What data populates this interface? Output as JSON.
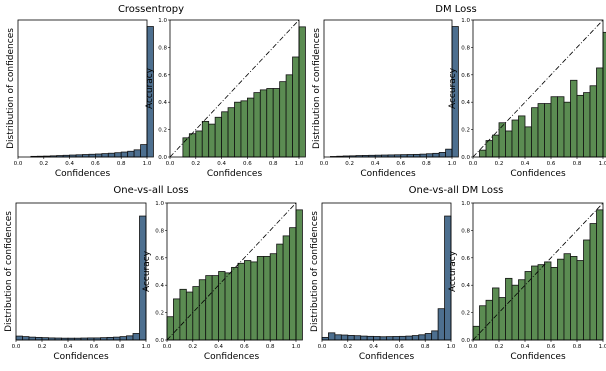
{
  "chart_data": [
    {
      "type": "bar",
      "title": "Crossentropy",
      "panels": [
        {
          "kind": "histogram",
          "xlabel": "Confidences",
          "ylabel": "Distribution of confidences",
          "xlim": [
            0,
            1
          ],
          "xticks": [
            "0.0",
            "0.2",
            "0.4",
            "0.6",
            "0.8",
            "1.0"
          ],
          "yticks": [],
          "bin_width": 0.05,
          "values": [
            0.0,
            0.0,
            0.005,
            0.006,
            0.007,
            0.009,
            0.011,
            0.013,
            0.015,
            0.017,
            0.019,
            0.021,
            0.023,
            0.026,
            0.029,
            0.033,
            0.038,
            0.044,
            0.055,
            0.095,
            1.0
          ],
          "color": "#4d6f8f"
        },
        {
          "kind": "reliability",
          "xlabel": "Confidences",
          "ylabel": "Accuracy",
          "xlim": [
            0,
            1
          ],
          "ylim": [
            0,
            1
          ],
          "xticks": [
            "0.0",
            "0.2",
            "0.4",
            "0.6",
            "0.8",
            "1.0"
          ],
          "yticks": [
            "0.0",
            "0.2",
            "0.4",
            "0.6",
            "0.8",
            "1.0"
          ],
          "bin_width": 0.05,
          "bins_start": 0.1,
          "values": [
            0.14,
            0.17,
            0.19,
            0.26,
            0.24,
            0.29,
            0.33,
            0.36,
            0.4,
            0.41,
            0.43,
            0.47,
            0.49,
            0.5,
            0.5,
            0.55,
            0.6,
            0.73,
            0.95
          ],
          "color": "#5b8c52"
        }
      ]
    },
    {
      "type": "bar",
      "title": "DM Loss",
      "panels": [
        {
          "kind": "histogram",
          "xlabel": "Confidences",
          "ylabel": "Distribution of confidences",
          "xlim": [
            0,
            1
          ],
          "xticks": [
            "0.0",
            "0.2",
            "0.4",
            "0.6",
            "0.8",
            "1.0"
          ],
          "yticks": [],
          "bin_width": 0.05,
          "values": [
            0.0,
            0.004,
            0.006,
            0.008,
            0.009,
            0.011,
            0.012,
            0.013,
            0.014,
            0.015,
            0.016,
            0.017,
            0.018,
            0.019,
            0.02,
            0.022,
            0.025,
            0.028,
            0.035,
            0.06,
            1.0
          ],
          "color": "#4d6f8f"
        },
        {
          "kind": "reliability",
          "xlabel": "Confidences",
          "ylabel": "Accuracy",
          "xlim": [
            0,
            1
          ],
          "ylim": [
            0,
            1
          ],
          "xticks": [
            "0.0",
            "0.2",
            "0.4",
            "0.6",
            "0.8",
            "1.0"
          ],
          "yticks": [
            "0.0",
            "0.2",
            "0.4",
            "0.6",
            "0.8",
            "1.0"
          ],
          "bin_width": 0.05,
          "bins_start": 0.05,
          "values": [
            0.05,
            0.12,
            0.16,
            0.25,
            0.19,
            0.27,
            0.3,
            0.22,
            0.36,
            0.39,
            0.39,
            0.44,
            0.44,
            0.4,
            0.56,
            0.45,
            0.47,
            0.52,
            0.65,
            0.91
          ],
          "color": "#5b8c52"
        }
      ]
    },
    {
      "type": "bar",
      "title": "One-vs-all Loss",
      "panels": [
        {
          "kind": "histogram",
          "xlabel": "Confidences",
          "ylabel": "Distribution of confidences",
          "xlim": [
            0,
            1
          ],
          "xticks": [
            "0.0",
            "0.2",
            "0.4",
            "0.6",
            "0.8",
            "1.0"
          ],
          "yticks": [],
          "bin_width": 0.05,
          "values": [
            0.03,
            0.026,
            0.022,
            0.02,
            0.018,
            0.016,
            0.015,
            0.014,
            0.014,
            0.014,
            0.015,
            0.016,
            0.016,
            0.018,
            0.02,
            0.022,
            0.026,
            0.032,
            0.05,
            0.95
          ],
          "color": "#4d6f8f"
        },
        {
          "kind": "reliability",
          "xlabel": "Confidences",
          "ylabel": "Accuracy",
          "xlim": [
            0,
            1
          ],
          "ylim": [
            0,
            1
          ],
          "xticks": [
            "0.0",
            "0.2",
            "0.4",
            "0.6",
            "0.8",
            "1.0"
          ],
          "yticks": [
            "0.0",
            "0.2",
            "0.4",
            "0.6",
            "0.8",
            "1.0"
          ],
          "bin_width": 0.05,
          "bins_start": 0.0,
          "values": [
            0.17,
            0.3,
            0.37,
            0.35,
            0.39,
            0.44,
            0.47,
            0.47,
            0.5,
            0.49,
            0.53,
            0.56,
            0.58,
            0.57,
            0.61,
            0.61,
            0.63,
            0.7,
            0.76,
            0.82,
            0.95
          ],
          "color": "#5b8c52"
        }
      ]
    },
    {
      "type": "bar",
      "title": "One-vs-all DM Loss",
      "panels": [
        {
          "kind": "histogram",
          "xlabel": "Confidences",
          "ylabel": "Distribution of confidences",
          "xlim": [
            0,
            1
          ],
          "xticks": [
            "0.0",
            "0.2",
            "0.4",
            "0.6",
            "0.8",
            "1.0"
          ],
          "yticks": [],
          "bin_width": 0.05,
          "values": [
            0.02,
            0.055,
            0.04,
            0.038,
            0.035,
            0.033,
            0.03,
            0.028,
            0.027,
            0.025,
            0.026,
            0.027,
            0.028,
            0.03,
            0.034,
            0.04,
            0.05,
            0.07,
            0.24,
            0.95
          ],
          "color": "#4d6f8f"
        },
        {
          "kind": "reliability",
          "xlabel": "Confidences",
          "ylabel": "Accuracy",
          "xlim": [
            0,
            1
          ],
          "ylim": [
            0,
            1
          ],
          "xticks": [
            "0.0",
            "0.2",
            "0.4",
            "0.6",
            "0.8",
            "1.0"
          ],
          "yticks": [
            "0.0",
            "0.2",
            "0.4",
            "0.6",
            "0.8",
            "1.0"
          ],
          "bin_width": 0.05,
          "bins_start": 0.0,
          "values": [
            0.1,
            0.25,
            0.29,
            0.38,
            0.31,
            0.45,
            0.4,
            0.44,
            0.5,
            0.54,
            0.55,
            0.57,
            0.53,
            0.59,
            0.63,
            0.61,
            0.58,
            0.73,
            0.85,
            0.95
          ],
          "color": "#5b8c52"
        }
      ]
    }
  ]
}
